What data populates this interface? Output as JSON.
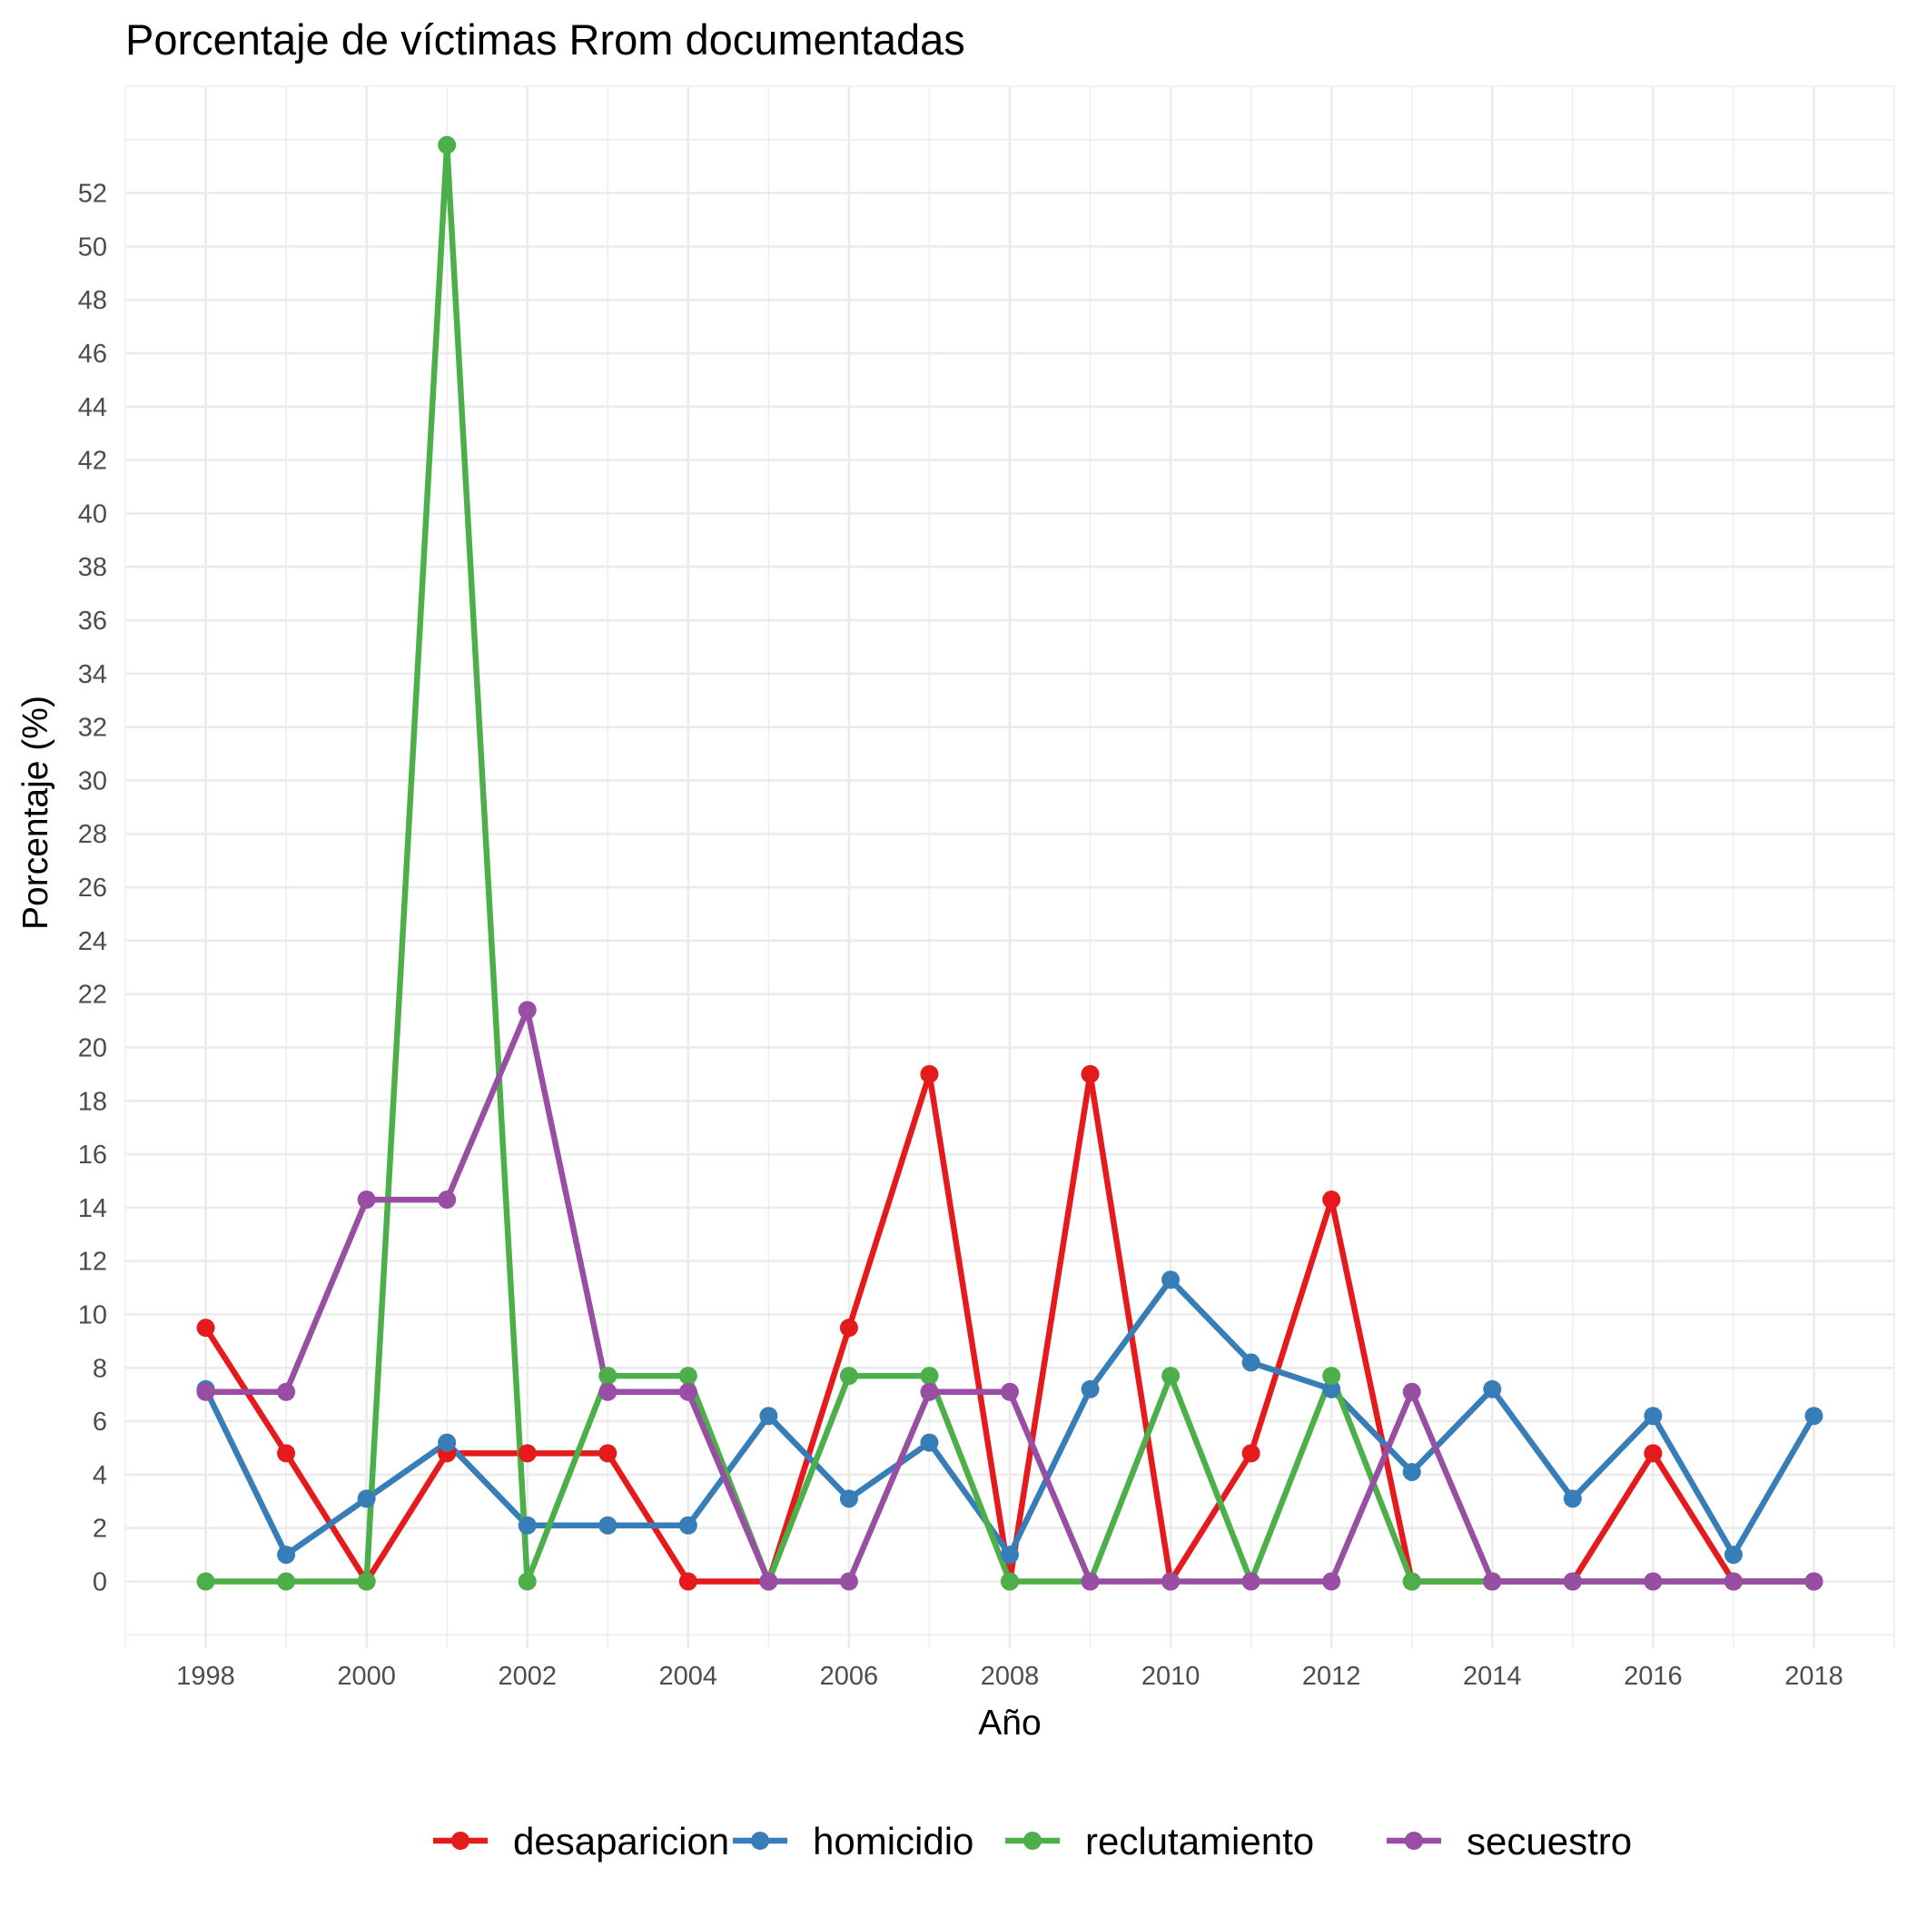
{
  "chart_data": {
    "type": "line",
    "title": "Porcentaje de víctimas Rrom documentadas",
    "xlabel": "Año",
    "ylabel": "Porcentaje (%)",
    "x": [
      1998,
      1999,
      2000,
      2001,
      2002,
      2003,
      2004,
      2005,
      2006,
      2007,
      2008,
      2009,
      2010,
      2011,
      2012,
      2013,
      2014,
      2015,
      2016,
      2017,
      2018
    ],
    "x_ticks": [
      "1998",
      "2000",
      "2002",
      "2004",
      "2006",
      "2008",
      "2010",
      "2012",
      "2014",
      "2016",
      "2018"
    ],
    "y_ticks": [
      "0",
      "2",
      "4",
      "6",
      "8",
      "10",
      "12",
      "14",
      "16",
      "18",
      "20",
      "22",
      "24",
      "26",
      "28",
      "30",
      "32",
      "34",
      "36",
      "38",
      "40",
      "42",
      "44",
      "46",
      "48",
      "50",
      "52"
    ],
    "xlim": [
      1997,
      2019
    ],
    "ylim": [
      -2.5,
      56
    ],
    "grid": true,
    "legend_position": "bottom",
    "series": [
      {
        "name": "desaparicion",
        "color": "#e41a1c",
        "values": [
          9.5,
          4.8,
          0,
          4.8,
          4.8,
          4.8,
          0,
          0,
          9.5,
          19.0,
          0,
          19.0,
          0,
          4.8,
          14.3,
          0,
          0,
          0,
          4.8,
          0,
          0
        ]
      },
      {
        "name": "homicidio",
        "color": "#377eb8",
        "values": [
          7.2,
          1.0,
          3.1,
          5.2,
          2.1,
          2.1,
          2.1,
          6.2,
          3.1,
          5.2,
          1.0,
          7.2,
          11.3,
          8.2,
          7.2,
          4.1,
          7.2,
          3.1,
          6.2,
          1.0,
          6.2
        ]
      },
      {
        "name": "reclutamiento",
        "color": "#4daf4a",
        "values": [
          0,
          0,
          0,
          53.8,
          0,
          7.7,
          7.7,
          0,
          7.7,
          7.7,
          0,
          0,
          7.7,
          0,
          7.7,
          0,
          0,
          0,
          0,
          0,
          0
        ]
      },
      {
        "name": "secuestro",
        "color": "#984ea3",
        "values": [
          7.1,
          7.1,
          14.3,
          14.3,
          21.4,
          7.1,
          7.1,
          0,
          0,
          7.1,
          7.1,
          0,
          0,
          0,
          0,
          7.1,
          0,
          0,
          0,
          0,
          0
        ]
      }
    ]
  }
}
